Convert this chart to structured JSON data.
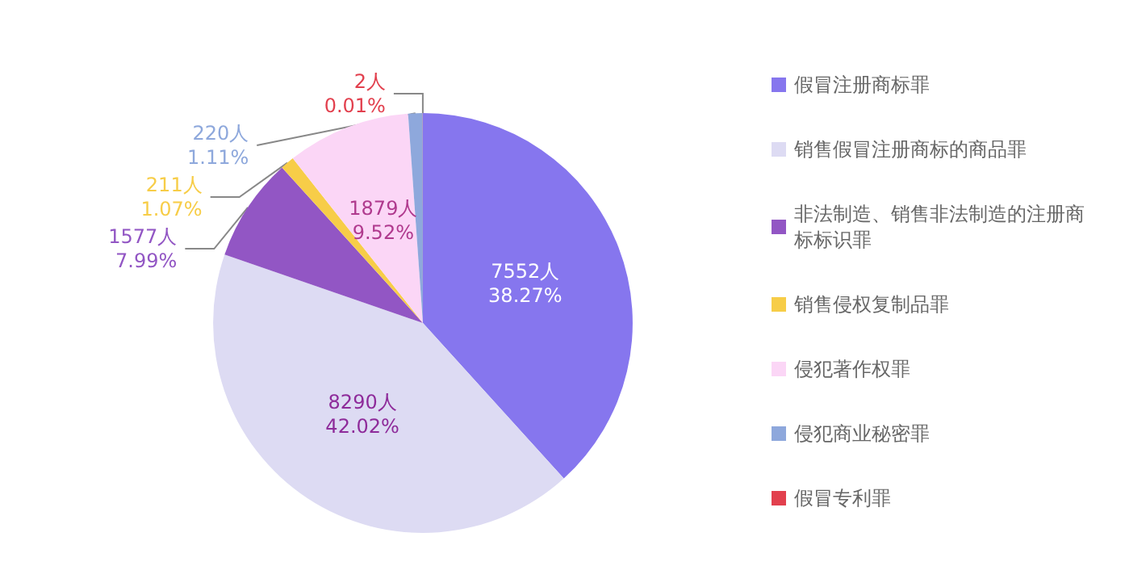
{
  "chart_data": {
    "type": "pie",
    "categories": [
      "假冒注册商标罪",
      "销售假冒注册商标的商品罪",
      "非法制造、销售非法制造的注册商标标识罪",
      "销售侵权复制品罪",
      "侵犯著作权罪",
      "侵犯商业秘密罪",
      "假冒专利罪"
    ],
    "values": [
      7552,
      8290,
      1577,
      211,
      1879,
      220,
      2
    ],
    "colors": [
      "#8676ee",
      "#dddbf3",
      "#9256c4",
      "#f7cd48",
      "#fbd6f6",
      "#8ea8dc",
      "#e2404e"
    ],
    "value_labels": [
      "7552人\n38.27%",
      "8290人\n42.02%",
      "1577人\n7.99%",
      "211人\n1.07%",
      "1879人\n9.52%",
      "220人\n1.11%",
      "2人\n0.01%"
    ],
    "legend": "right"
  }
}
